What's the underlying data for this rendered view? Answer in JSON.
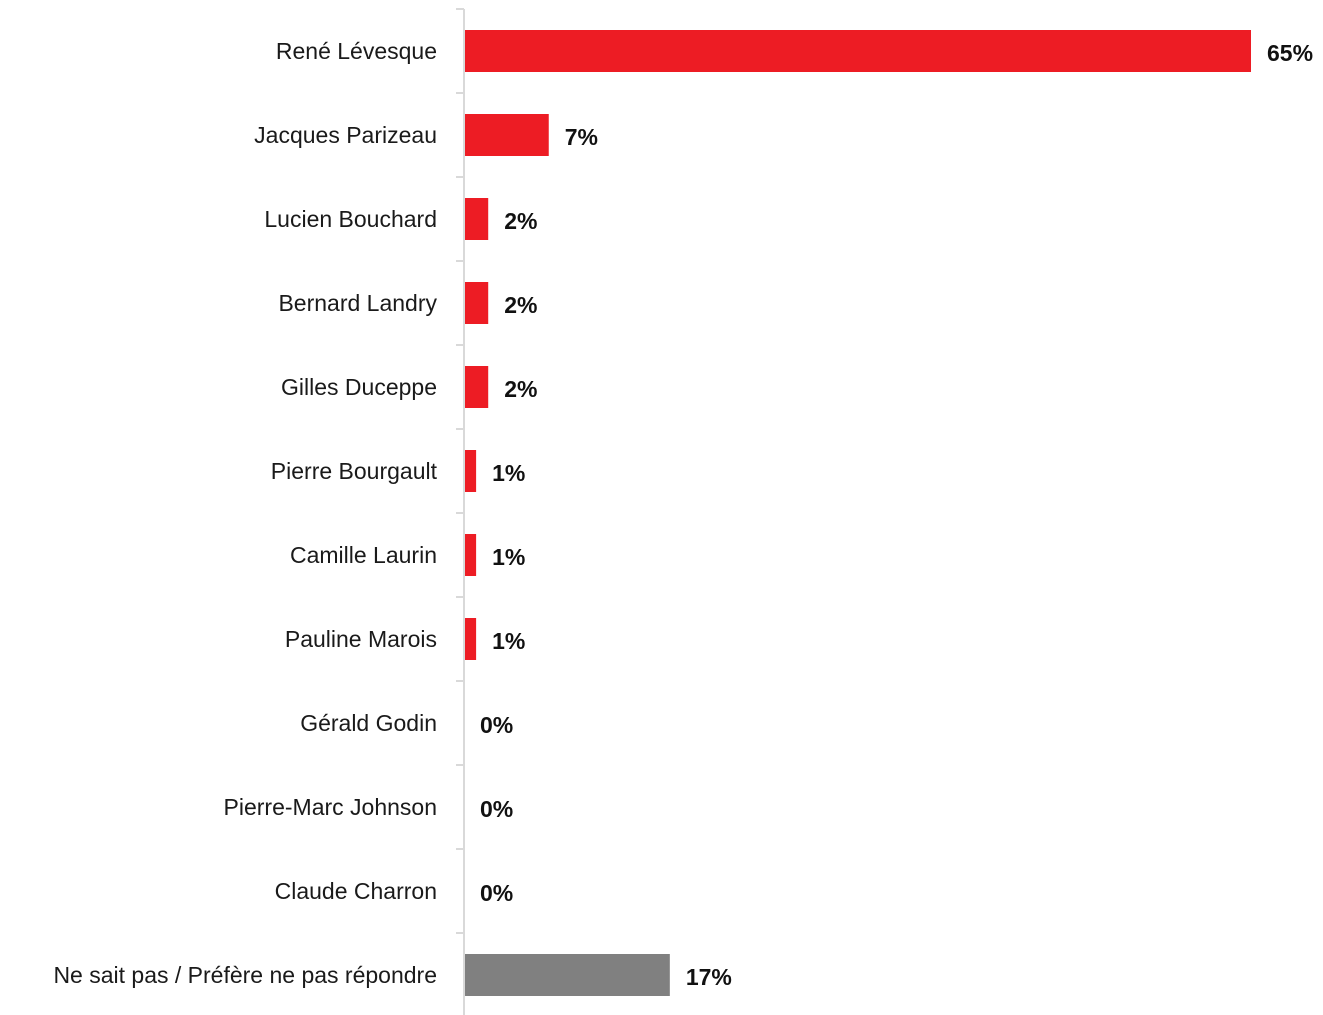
{
  "chart_data": {
    "type": "bar",
    "orientation": "horizontal",
    "categories": [
      "René Lévesque",
      "Jacques Parizeau",
      "Lucien Bouchard",
      "Bernard Landry",
      "Gilles Duceppe",
      "Pierre Bourgault",
      "Camille Laurin",
      "Pauline Marois",
      "Gérald Godin",
      "Pierre-Marc Johnson",
      "Claude Charron",
      "Ne sait pas / Préfère ne pas répondre"
    ],
    "values": [
      65,
      7,
      2,
      2,
      2,
      1,
      1,
      1,
      0,
      0,
      0,
      17
    ],
    "value_labels": [
      "65%",
      "7%",
      "2%",
      "2%",
      "2%",
      "1%",
      "1%",
      "1%",
      "0%",
      "0%",
      "0%",
      "17%"
    ],
    "bar_colors": [
      "#ed1c24",
      "#ed1c24",
      "#ed1c24",
      "#ed1c24",
      "#ed1c24",
      "#ed1c24",
      "#ed1c24",
      "#ed1c24",
      "#ed1c24",
      "#ed1c24",
      "#ed1c24",
      "#808080"
    ],
    "xlim": [
      0,
      65
    ],
    "grid": false,
    "legend": "none"
  },
  "colors": {
    "primary": "#ed1c24",
    "neutral": "#808080",
    "axis": "#d9d9d9"
  }
}
